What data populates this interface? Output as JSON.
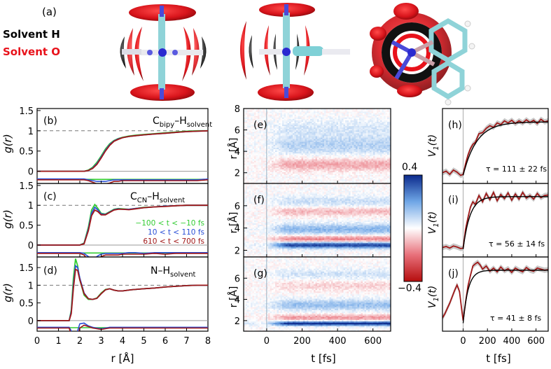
{
  "panel_a": {
    "label": "(a)",
    "legend": [
      {
        "text": "Solvent H",
        "color": "#000000"
      },
      {
        "text": "Solvent O",
        "color": "#e8121b"
      }
    ]
  },
  "colors": {
    "green": "#33cc33",
    "blue": "#2a4fd6",
    "red": "#a01818",
    "fit": "#000000",
    "cmap_pos": "#0b2a8c",
    "cmap_neg": "#b50d0d"
  },
  "colorbar": {
    "max_label": "0.4",
    "min_label": "−0.4",
    "range": [
      -0.4,
      0.4
    ]
  },
  "chart_data": [
    {
      "id": "b",
      "type": "line",
      "label": "(b)",
      "title_main": "C",
      "title_sub1": "bipy",
      "title_dash": "–H",
      "title_sub2": "solvent",
      "xlabel": "r [Å]",
      "ylabel": "g(r)",
      "xlim": [
        0,
        8
      ],
      "ylim": [
        -0.3,
        1.55
      ],
      "yticks": [
        "0",
        "0.5",
        "1",
        "1.5"
      ],
      "ytick_values": [
        0,
        0.5,
        1,
        1.5
      ],
      "dashed_y": 1,
      "baseline_y": 0,
      "diff_offset": -0.2,
      "series": [
        {
          "name": "-100 < t < -10 fs",
          "color": "green",
          "x": [
            0,
            2.2,
            2.4,
            2.6,
            2.8,
            3.0,
            3.2,
            3.4,
            3.6,
            3.8,
            4.0,
            4.3,
            4.6,
            5.0,
            5.5,
            6.0,
            6.5,
            7.0,
            7.5,
            8.0
          ],
          "y": [
            0,
            0,
            0.03,
            0.1,
            0.22,
            0.38,
            0.55,
            0.68,
            0.76,
            0.81,
            0.84,
            0.87,
            0.89,
            0.91,
            0.93,
            0.95,
            0.97,
            0.99,
            1.0,
            1.0
          ]
        },
        {
          "name": "10 < t < 110 fs",
          "color": "blue",
          "x": [
            0,
            2.2,
            2.4,
            2.6,
            2.8,
            3.0,
            3.2,
            3.4,
            3.6,
            3.8,
            4.0,
            4.3,
            4.6,
            5.0,
            5.5,
            6.0,
            6.5,
            7.0,
            7.5,
            8.0
          ],
          "y": [
            0,
            0,
            0.02,
            0.08,
            0.19,
            0.35,
            0.52,
            0.66,
            0.75,
            0.8,
            0.83,
            0.86,
            0.88,
            0.9,
            0.92,
            0.94,
            0.96,
            0.98,
            0.99,
            1.0
          ]
        },
        {
          "name": "610 < t < 700 fs",
          "color": "red",
          "x": [
            0,
            2.2,
            2.4,
            2.6,
            2.8,
            3.0,
            3.2,
            3.4,
            3.6,
            3.8,
            4.0,
            4.3,
            4.6,
            5.0,
            5.5,
            6.0,
            6.5,
            7.0,
            7.5,
            8.0
          ],
          "y": [
            0,
            0,
            0.02,
            0.07,
            0.17,
            0.33,
            0.5,
            0.64,
            0.74,
            0.79,
            0.83,
            0.86,
            0.88,
            0.9,
            0.92,
            0.94,
            0.96,
            0.98,
            0.99,
            1.0
          ]
        }
      ]
    },
    {
      "id": "c",
      "type": "line",
      "label": "(c)",
      "title_main": "C",
      "title_sub1": "CN",
      "title_dash": "–H",
      "title_sub2": "solvent",
      "xlabel": "r [Å]",
      "ylabel": "g(r)",
      "xlim": [
        0,
        8
      ],
      "ylim": [
        -0.3,
        1.55
      ],
      "yticks": [
        "0",
        "0.5",
        "1",
        "1.5"
      ],
      "ytick_values": [
        0,
        0.5,
        1,
        1.5
      ],
      "dashed_y": 1,
      "baseline_y": 0,
      "diff_offset": -0.2,
      "legend": [
        {
          "text": "−100 < t < −10 fs",
          "color": "green"
        },
        {
          "text": "10 < t < 110 fs",
          "color": "blue"
        },
        {
          "text": "610 < t < 700 fs",
          "color": "red"
        }
      ],
      "series": [
        {
          "name": "-100 < t < -10 fs",
          "color": "green",
          "x": [
            0,
            2.0,
            2.2,
            2.4,
            2.55,
            2.7,
            2.85,
            3.0,
            3.2,
            3.4,
            3.6,
            3.8,
            4.0,
            4.3,
            4.6,
            5.0,
            5.5,
            6.0,
            6.5,
            7.0,
            7.5,
            8.0
          ],
          "y": [
            0,
            0,
            0.05,
            0.45,
            0.88,
            1.02,
            0.92,
            0.8,
            0.78,
            0.84,
            0.9,
            0.92,
            0.91,
            0.9,
            0.92,
            0.95,
            0.96,
            0.98,
            0.99,
            1.0,
            1.0,
            1.0
          ]
        },
        {
          "name": "10 < t < 110 fs",
          "color": "blue",
          "x": [
            0,
            2.0,
            2.2,
            2.4,
            2.55,
            2.7,
            2.85,
            3.0,
            3.2,
            3.4,
            3.6,
            3.8,
            4.0,
            4.3,
            4.6,
            5.0,
            5.5,
            6.0,
            6.5,
            7.0,
            7.5,
            8.0
          ],
          "y": [
            0,
            0,
            0.04,
            0.4,
            0.8,
            0.95,
            0.88,
            0.78,
            0.77,
            0.83,
            0.89,
            0.91,
            0.9,
            0.9,
            0.92,
            0.94,
            0.96,
            0.98,
            0.99,
            1.0,
            1.0,
            1.0
          ]
        },
        {
          "name": "610 < t < 700 fs",
          "color": "red",
          "x": [
            0,
            2.0,
            2.2,
            2.4,
            2.55,
            2.7,
            2.85,
            3.0,
            3.2,
            3.4,
            3.6,
            3.8,
            4.0,
            4.3,
            4.6,
            5.0,
            5.5,
            6.0,
            6.5,
            7.0,
            7.5,
            8.0
          ],
          "y": [
            0,
            0,
            0.03,
            0.36,
            0.74,
            0.88,
            0.84,
            0.76,
            0.76,
            0.82,
            0.88,
            0.9,
            0.9,
            0.89,
            0.91,
            0.94,
            0.96,
            0.97,
            0.99,
            1.0,
            1.0,
            1.0
          ]
        }
      ]
    },
    {
      "id": "d",
      "type": "line",
      "label": "(d)",
      "title_main": "N",
      "title_sub1": "",
      "title_dash": "–H",
      "title_sub2": "solvent",
      "xlabel": "r [Å]",
      "ylabel": "g(r)",
      "xlim": [
        0,
        8
      ],
      "ylim": [
        -0.3,
        1.8
      ],
      "yticks": [
        "0",
        "0.5",
        "1",
        "1.5"
      ],
      "ytick_values": [
        0,
        0.5,
        1,
        1.5
      ],
      "xticks": [
        "0",
        "1",
        "2",
        "3",
        "4",
        "5",
        "6",
        "7",
        "8"
      ],
      "dashed_y": 1,
      "baseline_y": 0,
      "diff_offset": -0.2,
      "series": [
        {
          "name": "-100 < t < -10 fs",
          "color": "green",
          "x": [
            0,
            1.5,
            1.6,
            1.7,
            1.8,
            1.9,
            2.0,
            2.2,
            2.4,
            2.6,
            2.8,
            3.0,
            3.2,
            3.4,
            3.6,
            3.8,
            4.0,
            4.4,
            5.0,
            5.5,
            6.0,
            6.5,
            7.0,
            7.5,
            8.0
          ],
          "y": [
            0,
            0,
            0.3,
            1.2,
            1.75,
            1.55,
            1.15,
            0.72,
            0.6,
            0.6,
            0.64,
            0.78,
            0.88,
            0.9,
            0.86,
            0.84,
            0.84,
            0.87,
            0.9,
            0.92,
            0.95,
            0.97,
            0.99,
            1.0,
            1.0
          ]
        },
        {
          "name": "10 < t < 110 fs",
          "color": "blue",
          "x": [
            0,
            1.5,
            1.6,
            1.7,
            1.8,
            1.9,
            2.0,
            2.2,
            2.4,
            2.6,
            2.8,
            3.0,
            3.2,
            3.4,
            3.6,
            3.8,
            4.0,
            4.4,
            5.0,
            5.5,
            6.0,
            6.5,
            7.0,
            7.5,
            8.0
          ],
          "y": [
            0,
            0,
            0.25,
            1.0,
            1.55,
            1.5,
            1.2,
            0.78,
            0.62,
            0.6,
            0.63,
            0.76,
            0.87,
            0.9,
            0.86,
            0.84,
            0.84,
            0.87,
            0.9,
            0.92,
            0.95,
            0.97,
            0.99,
            1.0,
            1.0
          ]
        },
        {
          "name": "610 < t < 700 fs",
          "color": "red",
          "x": [
            0,
            1.5,
            1.6,
            1.7,
            1.8,
            1.9,
            2.0,
            2.2,
            2.4,
            2.6,
            2.8,
            3.0,
            3.2,
            3.4,
            3.6,
            3.8,
            4.0,
            4.4,
            5.0,
            5.5,
            6.0,
            6.5,
            7.0,
            7.5,
            8.0
          ],
          "y": [
            0,
            0,
            0.2,
            0.9,
            1.45,
            1.42,
            1.15,
            0.76,
            0.62,
            0.6,
            0.63,
            0.76,
            0.87,
            0.9,
            0.86,
            0.84,
            0.84,
            0.87,
            0.9,
            0.92,
            0.95,
            0.97,
            0.99,
            1.0,
            1.0
          ]
        }
      ]
    },
    {
      "id": "e",
      "type": "heatmap",
      "label": "(e)",
      "xlabel": "t [fs]",
      "ylabel": "r [Å]",
      "xlim": [
        -130,
        700
      ],
      "ylim": [
        1.0,
        8.0
      ],
      "yticks": [
        "2",
        "4",
        "6",
        "8"
      ],
      "ytick_values": [
        2,
        4,
        6,
        8
      ],
      "bands": [
        {
          "r": 2.8,
          "amp": -0.12,
          "width": 0.6
        },
        {
          "r": 4.6,
          "amp": 0.1,
          "width": 0.9
        },
        {
          "r": 6.2,
          "amp": 0.05,
          "width": 0.8
        }
      ]
    },
    {
      "id": "f",
      "type": "heatmap",
      "label": "(f)",
      "xlabel": "t [fs]",
      "ylabel": "r [Å]",
      "xlim": [
        -130,
        700
      ],
      "ylim": [
        1.4,
        8.0
      ],
      "yticks": [
        "2",
        "4",
        "6"
      ],
      "ytick_values": [
        2,
        4,
        6
      ],
      "bands": [
        {
          "r": 2.5,
          "amp": 0.38,
          "width": 0.28
        },
        {
          "r": 3.0,
          "amp": -0.18,
          "width": 0.35
        },
        {
          "r": 3.9,
          "amp": 0.16,
          "width": 0.5
        },
        {
          "r": 5.5,
          "amp": -0.1,
          "width": 0.4
        },
        {
          "r": 6.4,
          "amp": 0.07,
          "width": 0.5
        }
      ]
    },
    {
      "id": "g",
      "type": "heatmap",
      "label": "(g)",
      "xlabel": "t [fs]",
      "ylabel": "r [Å]",
      "xlim": [
        -130,
        700
      ],
      "ylim": [
        1.0,
        8.0
      ],
      "yticks": [
        "2",
        "4",
        "6"
      ],
      "ytick_values": [
        2,
        4,
        6
      ],
      "xticks": [
        "0",
        "200",
        "400",
        "600"
      ],
      "xtick_values": [
        0,
        200,
        400,
        600
      ],
      "bands": [
        {
          "r": 1.75,
          "amp": 0.42,
          "width": 0.2
        },
        {
          "r": 2.3,
          "amp": -0.14,
          "width": 0.3
        },
        {
          "r": 3.5,
          "amp": 0.14,
          "width": 0.5
        },
        {
          "r": 5.3,
          "amp": -0.06,
          "width": 0.5
        },
        {
          "r": 6.4,
          "amp": 0.06,
          "width": 0.5
        }
      ]
    },
    {
      "id": "h",
      "type": "line",
      "label": "(h)",
      "ylabel": "V1(t)",
      "xlim": [
        -170,
        700
      ],
      "ylim": [
        -0.15,
        1.25
      ],
      "tau_label": "τ = 111 ± 22 fs",
      "tau_fs": 111,
      "series": [
        {
          "name": "data",
          "color": "red",
          "x": [
            -170,
            -140,
            -110,
            -80,
            -50,
            -20,
            0,
            20,
            40,
            60,
            80,
            100,
            130,
            160,
            190,
            220,
            250,
            280,
            310,
            340,
            370,
            400,
            430,
            460,
            490,
            520,
            550,
            580,
            610,
            640,
            670,
            700
          ],
          "y": [
            0.05,
            0.08,
            0.02,
            0.1,
            0.06,
            0.0,
            0.02,
            0.22,
            0.38,
            0.5,
            0.58,
            0.62,
            0.78,
            0.8,
            0.88,
            0.93,
            0.9,
            0.98,
            0.95,
            1.02,
            0.98,
            1.03,
            0.97,
            1.02,
            0.98,
            1.04,
            0.99,
            1.03,
            0.97,
            1.05,
            1.0,
            1.02
          ]
        }
      ]
    },
    {
      "id": "i",
      "type": "line",
      "label": "(i)",
      "ylabel": "V1(t)",
      "xlim": [
        -170,
        700
      ],
      "ylim": [
        -0.15,
        1.25
      ],
      "tau_label": "τ = 56 ± 14 fs",
      "tau_fs": 56,
      "series": [
        {
          "name": "data",
          "color": "red",
          "x": [
            -170,
            -140,
            -110,
            -80,
            -50,
            -20,
            0,
            20,
            40,
            60,
            80,
            100,
            130,
            160,
            190,
            220,
            250,
            280,
            310,
            340,
            370,
            400,
            430,
            460,
            490,
            520,
            550,
            580,
            610,
            640,
            670,
            700
          ],
          "y": [
            0.03,
            0.05,
            0.02,
            0.06,
            0.04,
            0.01,
            0.02,
            0.38,
            0.6,
            0.8,
            0.9,
            0.85,
            1.02,
            0.9,
            1.06,
            0.94,
            1.08,
            0.92,
            1.04,
            0.96,
            1.07,
            0.93,
            1.05,
            0.95,
            1.08,
            0.97,
            1.02,
            0.95,
            1.06,
            0.98,
            1.02,
            1.03
          ]
        }
      ]
    },
    {
      "id": "j",
      "type": "line",
      "label": "(j)",
      "ylabel": "V1(t)",
      "xlabel": "t [fs]",
      "xlim": [
        -170,
        700
      ],
      "ylim": [
        -0.15,
        1.25
      ],
      "xticks": [
        "0",
        "200",
        "400",
        "600"
      ],
      "xtick_values": [
        0,
        200,
        400,
        600
      ],
      "tau_label": "τ = 41 ± 8 fs",
      "tau_fs": 41,
      "series": [
        {
          "name": "data",
          "color": "red",
          "x": [
            -170,
            -150,
            -130,
            -110,
            -90,
            -70,
            -50,
            -30,
            -10,
            0,
            20,
            40,
            60,
            80,
            100,
            120,
            140,
            160,
            190,
            220,
            250,
            280,
            310,
            340,
            370,
            400,
            430,
            460,
            490,
            520,
            550,
            580,
            610,
            640,
            670,
            700
          ],
          "y": [
            0.1,
            0.18,
            0.28,
            0.38,
            0.5,
            0.62,
            0.72,
            0.6,
            0.22,
            0.05,
            0.4,
            0.7,
            0.9,
            1.08,
            1.12,
            1.15,
            1.1,
            1.02,
            1.08,
            0.98,
            1.04,
            0.97,
            1.06,
            0.99,
            1.03,
            0.96,
            1.04,
            1.0,
            0.97,
            1.05,
            1.0,
            0.98,
            1.04,
            1.02,
            1.0,
            1.01
          ]
        }
      ]
    }
  ]
}
